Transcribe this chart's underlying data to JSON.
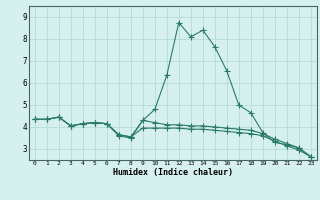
{
  "xlabel": "Humidex (Indice chaleur)",
  "bg_color": "#d6f0f0",
  "grid_color": "#b8dada",
  "line_color": "#2a7a6a",
  "xlim": [
    -0.5,
    23.5
  ],
  "ylim": [
    2.5,
    9.5
  ],
  "yticks": [
    3,
    4,
    5,
    6,
    7,
    8,
    9
  ],
  "xticks": [
    0,
    1,
    2,
    3,
    4,
    5,
    6,
    7,
    8,
    9,
    10,
    11,
    12,
    13,
    14,
    15,
    16,
    17,
    18,
    19,
    20,
    21,
    22,
    23
  ],
  "line1_x": [
    0,
    1,
    2,
    3,
    4,
    5,
    6,
    7,
    8,
    9,
    10,
    11,
    12,
    13,
    14,
    15,
    16,
    17,
    18,
    19,
    20,
    21,
    22,
    23
  ],
  "line1_y": [
    4.35,
    4.35,
    4.45,
    4.05,
    4.15,
    4.2,
    4.15,
    3.6,
    3.5,
    4.3,
    4.8,
    6.35,
    8.75,
    8.1,
    8.4,
    7.65,
    6.55,
    5.0,
    4.65,
    3.75,
    3.3,
    3.2,
    3.05,
    2.65
  ],
  "line2_x": [
    0,
    1,
    2,
    3,
    4,
    5,
    6,
    7,
    8,
    9,
    10,
    11,
    12,
    13,
    14,
    15,
    16,
    17,
    18,
    19,
    20,
    21,
    22,
    23
  ],
  "line2_y": [
    4.35,
    4.35,
    4.45,
    4.05,
    4.15,
    4.2,
    4.15,
    3.65,
    3.55,
    4.3,
    4.2,
    4.1,
    4.1,
    4.05,
    4.05,
    4.0,
    3.95,
    3.9,
    3.85,
    3.7,
    3.45,
    3.25,
    3.05,
    2.65
  ],
  "line3_x": [
    0,
    1,
    2,
    3,
    4,
    5,
    6,
    7,
    8,
    9,
    10,
    11,
    12,
    13,
    14,
    15,
    16,
    17,
    18,
    19,
    20,
    21,
    22,
    23
  ],
  "line3_y": [
    4.35,
    4.35,
    4.45,
    4.05,
    4.15,
    4.2,
    4.15,
    3.65,
    3.55,
    3.95,
    3.95,
    3.95,
    3.95,
    3.9,
    3.9,
    3.85,
    3.8,
    3.75,
    3.7,
    3.6,
    3.35,
    3.15,
    2.95,
    2.65
  ]
}
